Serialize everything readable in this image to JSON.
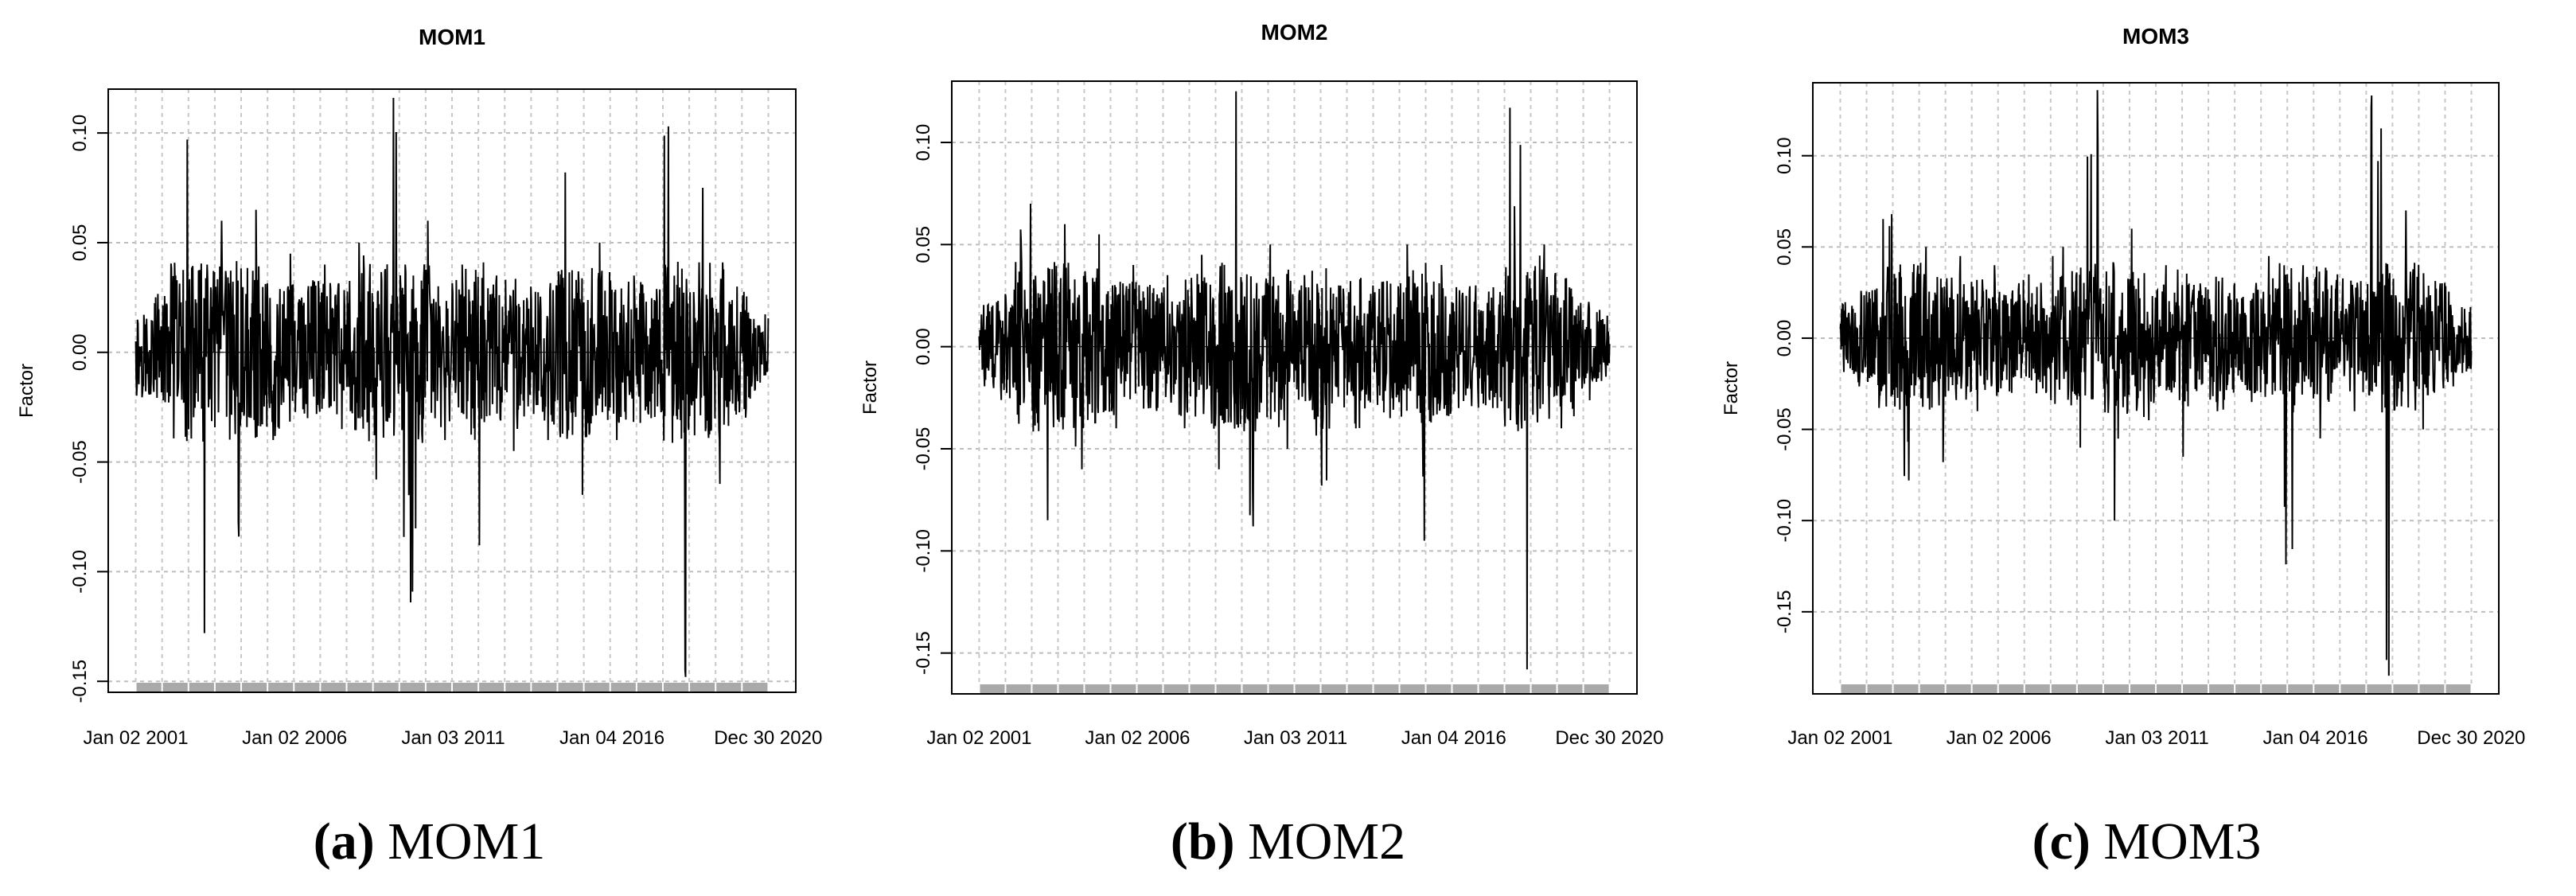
{
  "chart_data": [
    {
      "type": "line",
      "title": "MOM1",
      "ylabel": "Factor",
      "xlabel": "",
      "x_tick_labels": [
        "Jan 02 2001",
        "Jan 02 2006",
        "Jan 03 2011",
        "Jan 04 2016",
        "Dec 30 2020"
      ],
      "x_range": [
        "2001-01-02",
        "2020-12-31"
      ],
      "y_ticks": [
        -0.15,
        -0.1,
        -0.05,
        0.0,
        0.05,
        0.1
      ],
      "y_tick_labels": [
        "-0.15",
        "-0.10",
        "-0.05",
        "0.00",
        "0.05",
        "0.10"
      ],
      "ylim": [
        -0.155,
        0.12
      ],
      "grid": true,
      "series": [
        {
          "values": [
            0.005,
            -0.02,
            0.097,
            -0.128,
            0.06,
            -0.084,
            0.065,
            -0.04,
            0.045,
            -0.03,
            0.04,
            -0.035,
            0.05,
            -0.058,
            0.116,
            -0.114,
            0.06,
            -0.04,
            0.04,
            -0.088,
            0.035,
            -0.045,
            0.03,
            -0.04,
            0.082,
            -0.065,
            0.05,
            -0.04,
            0.035,
            -0.03,
            0.103,
            -0.148,
            0.075,
            -0.06,
            0.03,
            0.0
          ]
        }
      ],
      "caption_letter": "(a)",
      "caption_text": "MOM1"
    },
    {
      "type": "line",
      "title": "MOM2",
      "ylabel": "Factor",
      "xlabel": "",
      "x_tick_labels": [
        "Jan 02 2001",
        "Jan 02 2006",
        "Jan 03 2011",
        "Jan 04 2016",
        "Dec 30 2020"
      ],
      "x_range": [
        "2001-01-02",
        "2020-12-31"
      ],
      "y_ticks": [
        -0.15,
        -0.1,
        -0.05,
        0.0,
        0.05,
        0.1
      ],
      "y_tick_labels": [
        "-0.15",
        "-0.10",
        "-0.05",
        "0.00",
        "0.05",
        "0.10"
      ],
      "ylim": [
        -0.17,
        0.13
      ],
      "grid": true,
      "series": [
        {
          "values": [
            0.005,
            -0.02,
            0.07,
            -0.085,
            0.06,
            -0.06,
            0.055,
            -0.04,
            0.04,
            -0.03,
            0.035,
            -0.04,
            0.045,
            -0.06,
            0.125,
            -0.088,
            0.05,
            -0.05,
            0.035,
            -0.068,
            0.03,
            -0.04,
            0.03,
            -0.035,
            0.05,
            -0.095,
            0.04,
            -0.03,
            0.03,
            -0.03,
            0.117,
            -0.158,
            0.05,
            -0.04,
            0.02,
            0.0
          ]
        }
      ],
      "caption_letter": "(b)",
      "caption_text": "MOM2"
    },
    {
      "type": "line",
      "title": "MOM3",
      "ylabel": "Factor",
      "xlabel": "",
      "x_tick_labels": [
        "Jan 02 2001",
        "Jan 02 2006",
        "Jan 03 2011",
        "Jan 04 2016",
        "Dec 30 2020"
      ],
      "x_range": [
        "2001-01-02",
        "2020-12-31"
      ],
      "y_ticks": [
        -0.15,
        -0.1,
        -0.05,
        0.0,
        0.05,
        0.1
      ],
      "y_tick_labels": [
        "-0.15",
        "-0.10",
        "-0.05",
        "0.00",
        "0.05",
        "0.10"
      ],
      "ylim": [
        -0.195,
        0.14
      ],
      "grid": true,
      "series": [
        {
          "values": [
            0.005,
            -0.02,
            0.068,
            -0.078,
            0.05,
            -0.068,
            0.045,
            -0.04,
            0.04,
            -0.03,
            0.035,
            -0.03,
            0.05,
            -0.06,
            0.136,
            -0.1,
            0.06,
            -0.045,
            0.04,
            -0.065,
            0.03,
            -0.04,
            0.03,
            -0.035,
            0.045,
            -0.124,
            0.04,
            -0.055,
            0.035,
            -0.04,
            0.133,
            -0.185,
            0.07,
            -0.05,
            0.03,
            0.0
          ]
        }
      ],
      "caption_letter": "(c)",
      "caption_text": "MOM3"
    }
  ]
}
